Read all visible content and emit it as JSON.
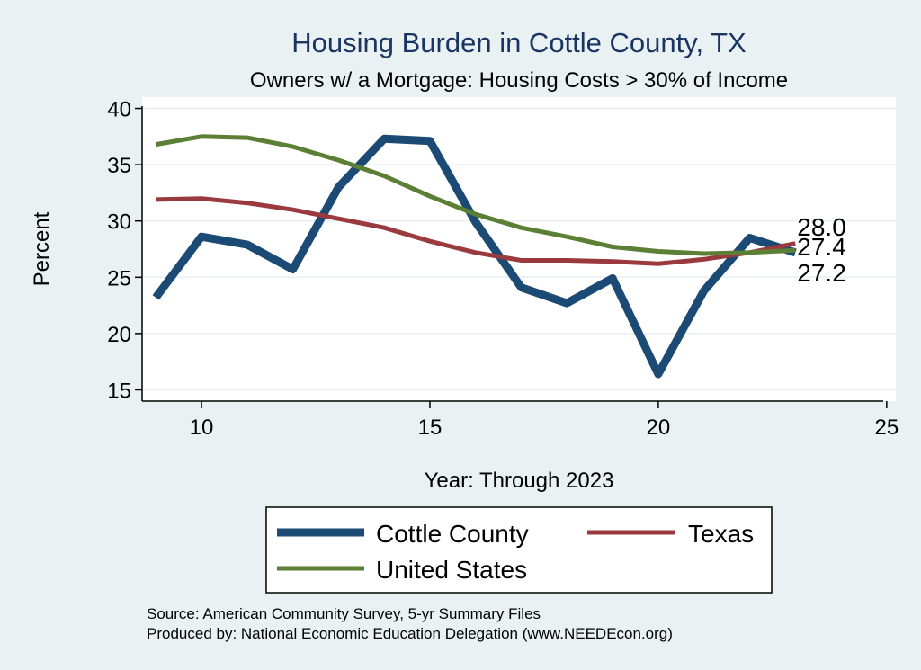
{
  "chart_data": {
    "type": "line",
    "title": "Housing Burden in Cottle County, TX",
    "subtitle": "Owners w/ a Mortgage: Housing Costs > 30% of Income",
    "xlabel": "Year: Through 2023",
    "ylabel": "Percent",
    "xlim": [
      8.7,
      25.2
    ],
    "ylim": [
      14,
      41
    ],
    "xticks": [
      10,
      15,
      20,
      25
    ],
    "yticks": [
      15,
      20,
      25,
      30,
      35,
      40
    ],
    "grid": true,
    "legend_position": "bottom",
    "x": [
      9,
      10,
      11,
      12,
      13,
      14,
      15,
      16,
      17,
      18,
      19,
      20,
      21,
      22,
      23
    ],
    "series": [
      {
        "name": "Cottle County",
        "color": "#1b4a75",
        "width": 9,
        "values": [
          23.2,
          28.6,
          27.9,
          25.7,
          33.0,
          37.3,
          37.1,
          29.9,
          24.1,
          22.7,
          24.9,
          16.4,
          23.8,
          28.5,
          27.2
        ]
      },
      {
        "name": "Texas",
        "color": "#9a3a3e",
        "width": 5,
        "values": [
          31.9,
          32.0,
          31.6,
          31.0,
          30.2,
          29.4,
          28.2,
          27.2,
          26.5,
          26.5,
          26.4,
          26.2,
          26.6,
          27.2,
          28.0
        ]
      },
      {
        "name": "United States",
        "color": "#5b7f35",
        "width": 5,
        "values": [
          36.8,
          37.5,
          37.4,
          36.6,
          35.4,
          34.0,
          32.2,
          30.6,
          29.4,
          28.6,
          27.7,
          27.3,
          27.1,
          27.2,
          27.4
        ]
      }
    ],
    "end_labels": [
      "28.0",
      "27.4",
      "27.2"
    ],
    "source_lines": [
      "Source: American Community Survey, 5-yr Summary Files",
      "Produced by: National Economic Education Delegation (www.NEEDEcon.org)"
    ]
  }
}
